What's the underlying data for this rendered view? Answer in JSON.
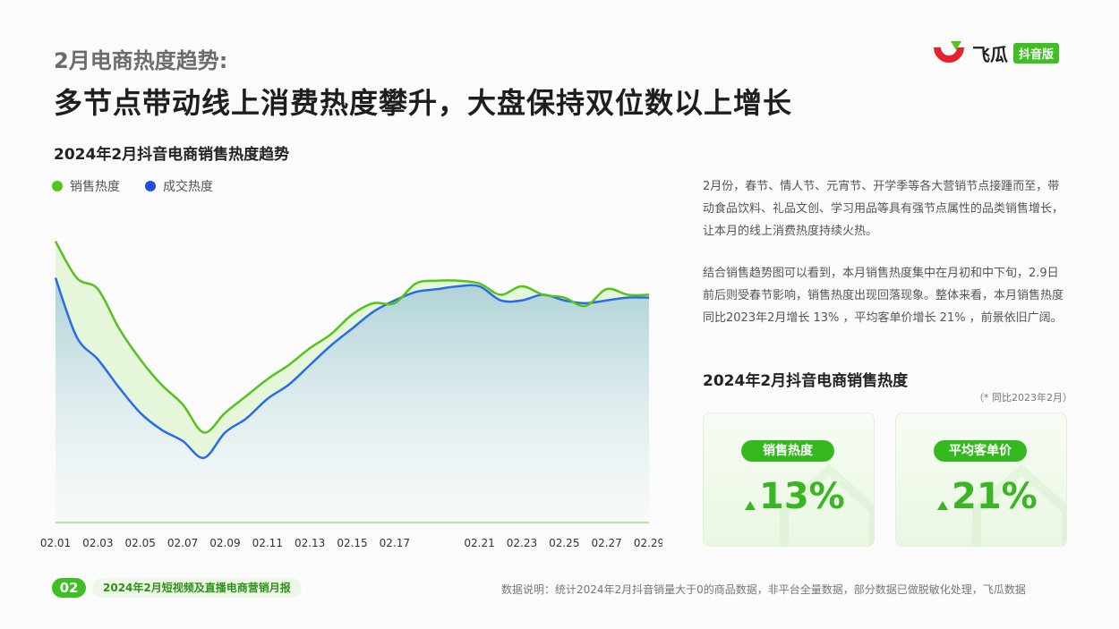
{
  "header": {
    "subtitle": "2月电商热度趋势:",
    "headline": "多节点带动线上消费热度攀升，大盘保持双位数以上增长"
  },
  "logo": {
    "text": "飞瓜",
    "badge": "抖音版"
  },
  "legend": [
    {
      "label": "销售热度",
      "color": "#52c41a"
    },
    {
      "label": "成交热度",
      "color": "#1f4fe0"
    }
  ],
  "chart_data": {
    "type": "line",
    "title": "2024年2月抖音电商销售热度趋势",
    "x": [
      "02.01",
      "02.02",
      "02.03",
      "02.04",
      "02.05",
      "02.06",
      "02.07",
      "02.08",
      "02.09",
      "02.10",
      "02.11",
      "02.12",
      "02.13",
      "02.14",
      "02.15",
      "02.16",
      "02.17",
      "02.18",
      "02.19",
      "02.20",
      "02.21",
      "02.22",
      "02.23",
      "02.24",
      "02.25",
      "02.26",
      "02.27",
      "02.28",
      "02.29"
    ],
    "tick_labels": [
      "02.01",
      "02.03",
      "02.05",
      "02.07",
      "02.09",
      "02.11",
      "02.13",
      "02.15",
      "02.17",
      "02.21",
      "02.23",
      "02.25",
      "02.27",
      "02.29"
    ],
    "series": [
      {
        "name": "销售热度",
        "color": "#52c41a",
        "values": [
          100,
          87,
          83,
          69,
          58,
          49,
          42,
          32,
          39,
          45,
          51,
          56,
          62,
          67,
          74,
          78,
          78,
          85,
          86,
          86,
          85,
          81,
          84,
          81,
          80,
          77,
          83,
          81,
          81
        ]
      },
      {
        "name": "成交热度",
        "color": "#2a6be6",
        "values": [
          87,
          66,
          58,
          48,
          39,
          33,
          29,
          23,
          32,
          37,
          44,
          49,
          56,
          63,
          69,
          75,
          79,
          82,
          83,
          84,
          84,
          79,
          79,
          81,
          79,
          78,
          79,
          80,
          80
        ]
      }
    ],
    "ylim": [
      0,
      105
    ],
    "grid": false,
    "legend_position": "top-left"
  },
  "description": {
    "p1": "2月份，春节、情人节、元宵节、开学季等各大营销节点接踵而至，带动食品饮料、礼品文创、学习用品等具有强节点属性的品类销售增长，让本月的线上消费热度持续火热。",
    "p2": "结合销售趋势图可以看到，本月销售热度集中在月初和中下旬，2.9日前后则受春节影响，销售热度出现回落现象。整体来看，本月销售热度同比2023年2月增长 13% ，平均客单价增长 21% ，前景依旧广阔。"
  },
  "stats": {
    "title": "2024年2月抖音电商销售热度",
    "note": "（* 同比2023年2月）",
    "cards": [
      {
        "label": "销售热度",
        "value": "13%"
      },
      {
        "label": "平均客单价",
        "value": "21%"
      }
    ]
  },
  "footer": {
    "page_num": "02",
    "report": "2024年2月短视频及直播电商营销月报",
    "source": "数据说明：统计2024年2月抖音销量大于0的商品数据，非平台全量数据，部分数据已做脱敏化处理，飞瓜数据"
  }
}
